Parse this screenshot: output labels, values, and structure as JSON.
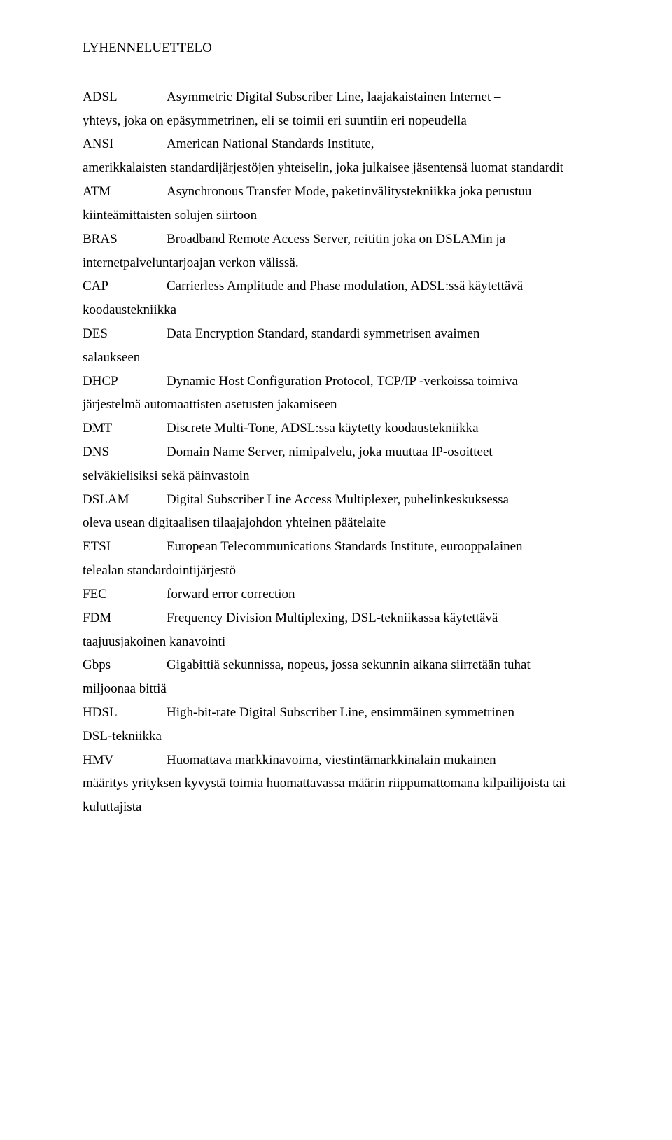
{
  "title": "LYHENNELUETTELO",
  "entries": [
    {
      "abbr": "ADSL",
      "def": "Asymmetric Digital Subscriber Line, laajakaistainen Internet –",
      "cont": "yhteys, joka on epäsymmetrinen, eli se toimii eri suuntiin eri nopeudella"
    },
    {
      "abbr": "ANSI",
      "def": "American National Standards Institute,",
      "cont": "amerikkalaisten standardijärjestöjen yhteiselin, joka julkaisee jäsentensä luomat standardit"
    },
    {
      "abbr": "ATM",
      "def": "Asynchronous Transfer Mode, paketinvälitystekniikka joka perustuu",
      "cont": "kiinteämittaisten solujen siirtoon"
    },
    {
      "abbr": "BRAS",
      "def": "Broadband Remote Access Server, reititin joka on DSLAMin ja",
      "cont": "internetpalveluntarjoajan verkon välissä."
    },
    {
      "abbr": "CAP",
      "def": "Carrierless Amplitude and Phase modulation, ADSL:ssä käytettävä",
      "cont": "koodaustekniikka"
    },
    {
      "abbr": "DES",
      "def": "Data Encryption Standard, standardi symmetrisen avaimen",
      "cont": "salaukseen"
    },
    {
      "abbr": "DHCP",
      "def": "Dynamic Host Configuration Protocol, TCP/IP -verkoissa toimiva",
      "cont": "järjestelmä automaattisten asetusten jakamiseen"
    },
    {
      "abbr": "DMT",
      "def": "Discrete Multi-Tone, ADSL:ssa käytetty koodaustekniikka",
      "cont": ""
    },
    {
      "abbr": "DNS",
      "def": "Domain Name Server, nimipalvelu, joka muuttaa IP-osoitteet",
      "cont": "selväkielisiksi sekä päinvastoin"
    },
    {
      "abbr": "DSLAM",
      "def": "Digital Subscriber Line Access Multiplexer, puhelinkeskuksessa",
      "cont": "oleva usean digitaalisen tilaajajohdon yhteinen päätelaite"
    },
    {
      "abbr": "ETSI",
      "def": "European Telecommunications Standards Institute, eurooppalainen",
      "cont": "telealan standardointijärjestö"
    },
    {
      "abbr": "FEC",
      "def": "forward error correction",
      "cont": ""
    },
    {
      "abbr": "FDM",
      "def": "Frequency Division Multiplexing, DSL-tekniikassa käytettävä",
      "cont": "taajuusjakoinen kanavointi"
    },
    {
      "abbr": "Gbps",
      "def": "Gigabittiä sekunnissa, nopeus, jossa sekunnin aikana siirretään tuhat",
      "cont": "miljoonaa bittiä"
    },
    {
      "abbr": "HDSL",
      "def": "High-bit-rate Digital Subscriber Line, ensimmäinen symmetrinen",
      "cont": "DSL-tekniikka"
    },
    {
      "abbr": "HMV",
      "def": "Huomattava markkinavoima, viestintämarkkinalain mukainen",
      "cont": "määritys yrityksen kyvystä toimia huomattavassa määrin riippumattomana kilpailijoista tai kuluttajista"
    }
  ]
}
